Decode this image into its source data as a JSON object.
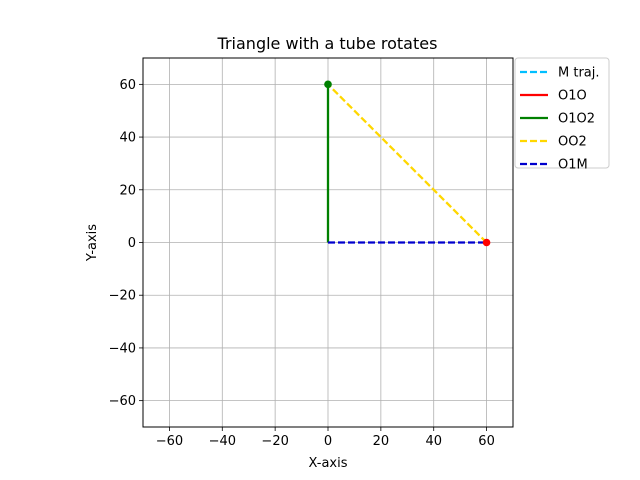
{
  "chart_data": {
    "type": "line",
    "title": "Triangle with a tube rotates",
    "xlabel": "X-axis",
    "ylabel": "Y-axis",
    "xlim": [
      -70,
      70
    ],
    "ylim": [
      -70,
      70
    ],
    "xticks": [
      -60,
      -40,
      -20,
      0,
      20,
      40,
      60
    ],
    "yticks": [
      -60,
      -40,
      -20,
      0,
      20,
      40,
      60
    ],
    "xtick_labels": [
      "−60",
      "−40",
      "−20",
      "0",
      "20",
      "40",
      "60"
    ],
    "ytick_labels": [
      "−60",
      "−40",
      "−20",
      "0",
      "20",
      "40",
      "60"
    ],
    "grid": true,
    "legend_position": "outside-top-right",
    "series": [
      {
        "name": "M traj.",
        "color": "#00bfff",
        "style": "dashed",
        "points": []
      },
      {
        "name": "O1O",
        "color": "#ff0000",
        "style": "solid",
        "points": [
          [
            60,
            0
          ],
          [
            60,
            0
          ]
        ]
      },
      {
        "name": "O1O2",
        "color": "#008000",
        "style": "solid",
        "points": [
          [
            0,
            0
          ],
          [
            0,
            60
          ]
        ]
      },
      {
        "name": "OO2",
        "color": "#ffd700",
        "style": "dashed",
        "points": [
          [
            60,
            0
          ],
          [
            0,
            60
          ]
        ]
      },
      {
        "name": "O1M",
        "color": "#0000cd",
        "style": "dashed",
        "points": [
          [
            0,
            0
          ],
          [
            60,
            0
          ]
        ]
      }
    ],
    "markers": [
      {
        "name": "O2",
        "x": 0,
        "y": 60,
        "color": "#008000"
      },
      {
        "name": "O",
        "x": 60,
        "y": 0,
        "color": "#ff0000"
      }
    ]
  }
}
